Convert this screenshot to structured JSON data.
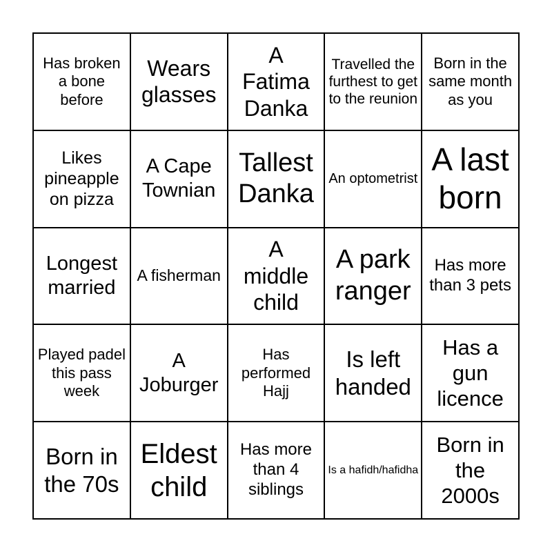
{
  "cells": [
    [
      "Has broken a bone before",
      "Wears glasses",
      "A Fatima Danka",
      "Travelled the furthest to get to the reunion",
      "Born in the same month as you"
    ],
    [
      "Likes pineapple on pizza",
      "A Cape Townian",
      "Tallest Danka",
      "An optometrist",
      "A last born"
    ],
    [
      "Longest married",
      "A fisherman",
      "A middle child",
      "A park ranger",
      "Has more than 3 pets"
    ],
    [
      "Played padel this pass week",
      "A Joburger",
      "Has performed Hajj",
      "Is left handed",
      "Has a gun licence"
    ],
    [
      "Born in the 70s",
      "Eldest child",
      "Has more than 4 siblings",
      "Is a hafidh/hafidha",
      "Born in the 2000s"
    ]
  ]
}
